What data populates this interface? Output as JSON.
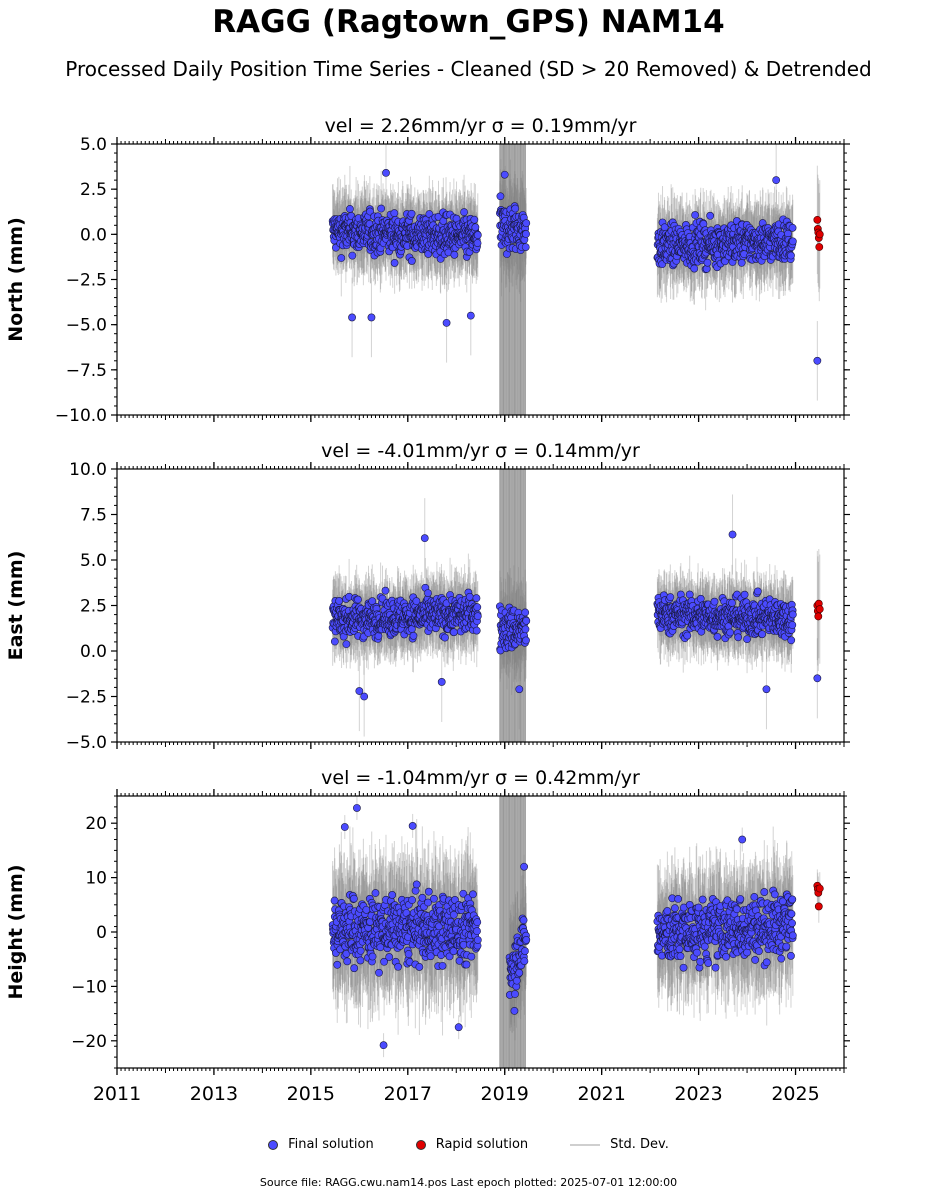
{
  "title": "RAGG (Ragtown_GPS) NAM14",
  "subtitle": "Processed Daily Position Time Series - Cleaned (SD > 20 Removed) & Detrended",
  "legend": {
    "final": "Final solution",
    "rapid": "Rapid solution",
    "stddev": "Std. Dev."
  },
  "footer": "Source file: RAGG.cwu.nam14.pos  Last epoch plotted: 2025-07-01 12:00:00",
  "colors": {
    "final": "#4b4bff",
    "rapid": "#e00000",
    "errorbar": "#808080",
    "axis": "#000000"
  },
  "chart_data": [
    {
      "type": "scatter",
      "panel": "north",
      "title": "vel = 2.26mm/yr   σ = 0.19mm/yr",
      "ylabel": "North (mm)",
      "xlabel": "",
      "xlim": [
        2011,
        2026
      ],
      "ylim": [
        -10,
        5
      ],
      "yticks": [
        -10,
        -7.5,
        -5,
        -2.5,
        0,
        2.5,
        5
      ],
      "ytick_labels": [
        "−10.0",
        "−7.5",
        "−5.0",
        "−2.5",
        "0.0",
        "2.5",
        "5.0"
      ],
      "xticks": [
        2011,
        2013,
        2015,
        2017,
        2019,
        2021,
        2023,
        2025
      ],
      "xtick_labels": [],
      "segments": [
        {
          "start": 2015.45,
          "end": 2018.45,
          "mean": 0.0,
          "trend": -0.35,
          "spread": 1.0
        },
        {
          "start": 2018.9,
          "end": 2019.45,
          "mean": 0.3,
          "trend": 0.0,
          "spread": 1.2
        },
        {
          "start": 2022.15,
          "end": 2024.95,
          "mean": -0.5,
          "trend": 0.3,
          "spread": 1.0
        }
      ],
      "outliers": [
        {
          "x": 2015.85,
          "y": -4.6
        },
        {
          "x": 2016.25,
          "y": -4.6
        },
        {
          "x": 2017.8,
          "y": -4.9
        },
        {
          "x": 2018.3,
          "y": -4.5
        },
        {
          "x": 2016.55,
          "y": 3.4
        },
        {
          "x": 2019.0,
          "y": 3.3
        },
        {
          "x": 2024.6,
          "y": 3.0
        },
        {
          "x": 2025.45,
          "y": -7.0
        }
      ],
      "rapid": [
        {
          "x": 2025.45,
          "y": 0.8
        },
        {
          "x": 2025.46,
          "y": 0.3
        },
        {
          "x": 2025.47,
          "y": 0.1
        },
        {
          "x": 2025.48,
          "y": -0.2
        },
        {
          "x": 2025.49,
          "y": -0.7
        },
        {
          "x": 2025.5,
          "y": 0.0
        }
      ]
    },
    {
      "type": "scatter",
      "panel": "east",
      "title": "vel = -4.01mm/yr   σ = 0.14mm/yr",
      "ylabel": "East (mm)",
      "xlabel": "",
      "xlim": [
        2011,
        2026
      ],
      "ylim": [
        -5,
        10
      ],
      "yticks": [
        -5,
        -2.5,
        0,
        2.5,
        5,
        7.5,
        10
      ],
      "ytick_labels": [
        "−5.0",
        "−2.5",
        "0.0",
        "2.5",
        "5.0",
        "7.5",
        "10.0"
      ],
      "xticks": [
        2011,
        2013,
        2015,
        2017,
        2019,
        2021,
        2023,
        2025
      ],
      "xtick_labels": [],
      "segments": [
        {
          "start": 2015.45,
          "end": 2018.45,
          "mean": 1.9,
          "trend": 0.35,
          "spread": 0.9
        },
        {
          "start": 2018.9,
          "end": 2019.45,
          "mean": 1.2,
          "trend": 0.0,
          "spread": 1.1
        },
        {
          "start": 2022.15,
          "end": 2024.95,
          "mean": 1.9,
          "trend": -0.2,
          "spread": 0.9
        }
      ],
      "outliers": [
        {
          "x": 2016.0,
          "y": -2.2
        },
        {
          "x": 2016.1,
          "y": -2.5
        },
        {
          "x": 2017.7,
          "y": -1.7
        },
        {
          "x": 2017.35,
          "y": 6.2
        },
        {
          "x": 2023.7,
          "y": 6.4
        },
        {
          "x": 2019.3,
          "y": -2.1
        },
        {
          "x": 2025.45,
          "y": -1.5
        },
        {
          "x": 2024.4,
          "y": -2.1
        }
      ],
      "rapid": [
        {
          "x": 2025.45,
          "y": 2.5
        },
        {
          "x": 2025.46,
          "y": 2.2
        },
        {
          "x": 2025.47,
          "y": 1.9
        },
        {
          "x": 2025.48,
          "y": 2.6
        },
        {
          "x": 2025.5,
          "y": 2.3
        }
      ]
    },
    {
      "type": "scatter",
      "panel": "height",
      "title": "vel = -1.04mm/yr   σ = 0.42mm/yr",
      "ylabel": "Height (mm)",
      "xlabel": "",
      "xlim": [
        2011,
        2026
      ],
      "ylim": [
        -25,
        25
      ],
      "yticks": [
        -20,
        -10,
        0,
        10,
        20
      ],
      "ytick_labels": [
        "−20",
        "−10",
        "0",
        "10",
        "20"
      ],
      "xticks": [
        2011,
        2013,
        2015,
        2017,
        2019,
        2021,
        2023,
        2025
      ],
      "xtick_labels": [
        "2011",
        "2013",
        "2015",
        "2017",
        "2019",
        "2021",
        "2023",
        "2025"
      ],
      "segments": [
        {
          "start": 2015.45,
          "end": 2018.45,
          "mean": 0.5,
          "trend": 0.0,
          "spread": 5.5
        },
        {
          "start": 2019.1,
          "end": 2019.45,
          "mean": -4.0,
          "trend": 6.0,
          "spread": 4.5
        },
        {
          "start": 2022.15,
          "end": 2024.95,
          "mean": 0.5,
          "trend": 2.0,
          "spread": 5.0
        }
      ],
      "outliers": [
        {
          "x": 2015.95,
          "y": 22.8
        },
        {
          "x": 2015.7,
          "y": 19.3
        },
        {
          "x": 2017.1,
          "y": 19.5
        },
        {
          "x": 2016.5,
          "y": -20.8
        },
        {
          "x": 2018.05,
          "y": -17.5
        },
        {
          "x": 2023.9,
          "y": 17.0
        },
        {
          "x": 2019.4,
          "y": 12.0
        },
        {
          "x": 2019.2,
          "y": -14.5
        }
      ],
      "rapid": [
        {
          "x": 2025.45,
          "y": 8.5
        },
        {
          "x": 2025.46,
          "y": 7.9
        },
        {
          "x": 2025.47,
          "y": 7.2
        },
        {
          "x": 2025.48,
          "y": 4.7
        },
        {
          "x": 2025.5,
          "y": 8.0
        }
      ]
    }
  ]
}
